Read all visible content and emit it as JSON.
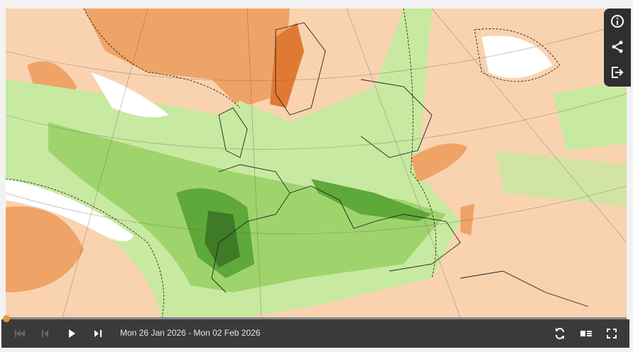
{
  "map": {
    "colors": {
      "base": "#f9d3b0",
      "warm": "#f0a366",
      "hot": "#e07a32",
      "green_light": "#c8e9a0",
      "green": "#9fd46c",
      "green_dark": "#5fa83a",
      "green_darkest": "#3f7a26",
      "neutral": "#ffffff"
    }
  },
  "side_panel": {
    "buttons": [
      {
        "icon": "info-icon"
      },
      {
        "icon": "share-icon"
      },
      {
        "icon": "export-icon"
      }
    ]
  },
  "player": {
    "date_range": "Mon 26 Jan 2026 - Mon 02 Feb 2026",
    "progress": 0,
    "buttons": [
      {
        "icon": "skip-to-start-icon"
      },
      {
        "icon": "step-back-icon"
      },
      {
        "icon": "play-icon"
      },
      {
        "icon": "step-forward-icon"
      },
      {
        "icon": "loop-icon"
      },
      {
        "icon": "legend-icon"
      },
      {
        "icon": "fullscreen-icon"
      }
    ]
  }
}
